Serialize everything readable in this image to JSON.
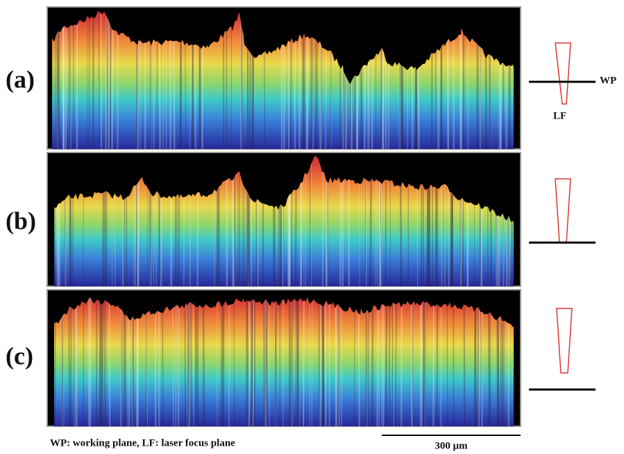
{
  "panels": [
    {
      "label": "(a)"
    },
    {
      "label": "(b)"
    },
    {
      "label": "(c)"
    }
  ],
  "annotations": {
    "wp": "WP",
    "lf": "LF"
  },
  "caption": "WP: working plane,  LF: laser focus plane",
  "scale_bar": {
    "label": "300 μm"
  }
}
